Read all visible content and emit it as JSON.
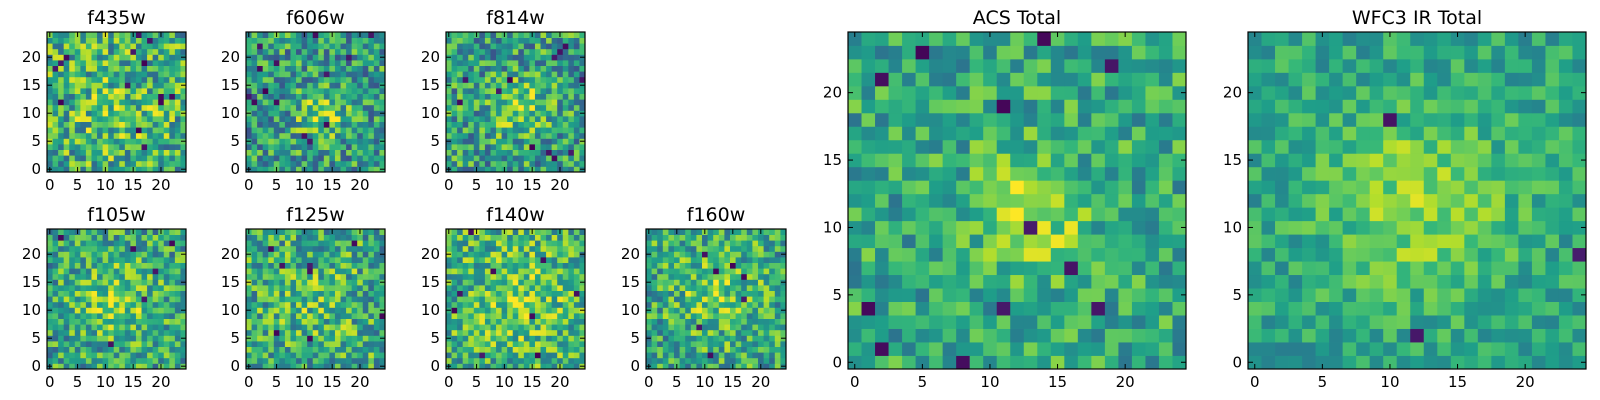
{
  "figure": {
    "description_free": true
  },
  "colormap": {
    "name": "viridis",
    "stops": [
      "#440154",
      "#482878",
      "#3e4989",
      "#31688e",
      "#26828e",
      "#1f9e89",
      "#35b779",
      "#6ece58",
      "#b5de2b",
      "#fde725"
    ]
  },
  "chart_data": [
    {
      "type": "heatmap",
      "title": "f435w",
      "grid_size": 25,
      "xlim": [
        0,
        24
      ],
      "ylim": [
        0,
        24
      ],
      "xticks": [
        "0",
        "5",
        "10",
        "15",
        "20"
      ],
      "yticks": [
        "0",
        "5",
        "10",
        "15",
        "20"
      ],
      "value_range": [
        0,
        1
      ],
      "peak_center": [
        12,
        11
      ],
      "peak_width": 6,
      "peak_amp": 0.1,
      "noise": 0.32,
      "base": 0.62,
      "seed": 11,
      "dark_pixels": 14
    },
    {
      "type": "heatmap",
      "title": "f606w",
      "grid_size": 25,
      "xlim": [
        0,
        24
      ],
      "ylim": [
        0,
        24
      ],
      "xticks": [
        "0",
        "5",
        "10",
        "15",
        "20"
      ],
      "yticks": [
        "0",
        "5",
        "10",
        "15",
        "20"
      ],
      "value_range": [
        0,
        1
      ],
      "peak_center": [
        13,
        10
      ],
      "peak_width": 3,
      "peak_amp": 0.28,
      "noise": 0.3,
      "base": 0.55,
      "seed": 23,
      "dark_pixels": 14
    },
    {
      "type": "heatmap",
      "title": "f814w",
      "grid_size": 25,
      "xlim": [
        0,
        24
      ],
      "ylim": [
        0,
        24
      ],
      "xticks": [
        "0",
        "5",
        "10",
        "15",
        "20"
      ],
      "yticks": [
        "0",
        "5",
        "10",
        "15",
        "20"
      ],
      "value_range": [
        0,
        1
      ],
      "peak_center": [
        13,
        11
      ],
      "peak_width": 3.5,
      "peak_amp": 0.25,
      "noise": 0.3,
      "base": 0.56,
      "seed": 37,
      "dark_pixels": 12
    },
    {
      "type": "heatmap",
      "title": "f105w",
      "grid_size": 25,
      "xlim": [
        0,
        24
      ],
      "ylim": [
        0,
        24
      ],
      "xticks": [
        "0",
        "5",
        "10",
        "15",
        "20"
      ],
      "yticks": [
        "0",
        "5",
        "10",
        "15",
        "20"
      ],
      "value_range": [
        0,
        1
      ],
      "peak_center": [
        12,
        12
      ],
      "peak_width": 5,
      "peak_amp": 0.22,
      "noise": 0.28,
      "base": 0.58,
      "seed": 41,
      "dark_pixels": 6
    },
    {
      "type": "heatmap",
      "title": "f125w",
      "grid_size": 25,
      "xlim": [
        0,
        24
      ],
      "ylim": [
        0,
        24
      ],
      "xticks": [
        "0",
        "5",
        "10",
        "15",
        "20"
      ],
      "yticks": [
        "0",
        "5",
        "10",
        "15",
        "20"
      ],
      "value_range": [
        0,
        1
      ],
      "peak_center": [
        12,
        12
      ],
      "peak_width": 6,
      "peak_amp": 0.1,
      "noise": 0.3,
      "base": 0.6,
      "seed": 53,
      "dark_pixels": 8
    },
    {
      "type": "heatmap",
      "title": "f140w",
      "grid_size": 25,
      "xlim": [
        0,
        24
      ],
      "ylim": [
        0,
        24
      ],
      "xticks": [
        "0",
        "5",
        "10",
        "15",
        "20"
      ],
      "yticks": [
        "0",
        "5",
        "10",
        "15",
        "20"
      ],
      "value_range": [
        0,
        1
      ],
      "peak_center": [
        13,
        12
      ],
      "peak_width": 6,
      "peak_amp": 0.15,
      "noise": 0.28,
      "base": 0.64,
      "seed": 67,
      "dark_pixels": 9
    },
    {
      "type": "heatmap",
      "title": "f160w",
      "grid_size": 25,
      "xlim": [
        0,
        24
      ],
      "ylim": [
        0,
        24
      ],
      "xticks": [
        "0",
        "5",
        "10",
        "15",
        "20"
      ],
      "yticks": [
        "0",
        "5",
        "10",
        "15",
        "20"
      ],
      "value_range": [
        0,
        1
      ],
      "peak_center": [
        12,
        13
      ],
      "peak_width": 5,
      "peak_amp": 0.18,
      "noise": 0.28,
      "base": 0.6,
      "seed": 79,
      "dark_pixels": 7
    },
    {
      "type": "heatmap",
      "title": "ACS Total",
      "grid_size": 25,
      "xlim": [
        0,
        24
      ],
      "ylim": [
        0,
        24
      ],
      "xticks": [
        "0",
        "5",
        "10",
        "15",
        "20"
      ],
      "yticks": [
        "0",
        "5",
        "10",
        "15",
        "20"
      ],
      "value_range": [
        0,
        1
      ],
      "peak_center": [
        13,
        11
      ],
      "peak_width": 3,
      "peak_amp": 0.3,
      "noise": 0.22,
      "base": 0.6,
      "seed": 89,
      "dark_pixels": 12
    },
    {
      "type": "heatmap",
      "title": "WFC3 IR Total",
      "grid_size": 25,
      "xlim": [
        0,
        24
      ],
      "ylim": [
        0,
        24
      ],
      "xticks": [
        "0",
        "5",
        "10",
        "15",
        "20"
      ],
      "yticks": [
        "0",
        "5",
        "10",
        "15",
        "20"
      ],
      "value_range": [
        0,
        1
      ],
      "peak_center": [
        12,
        12
      ],
      "peak_width": 5,
      "peak_amp": 0.25,
      "noise": 0.16,
      "base": 0.58,
      "seed": 97,
      "dark_pixels": 3
    }
  ]
}
